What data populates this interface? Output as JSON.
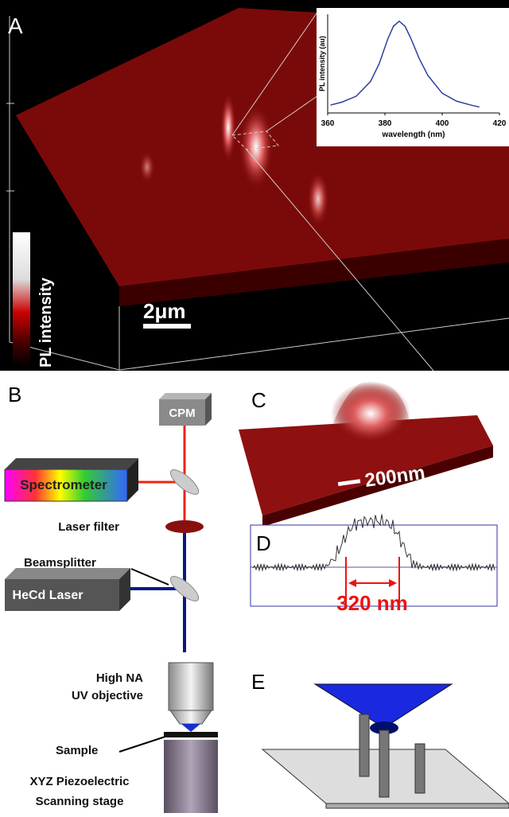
{
  "panel_a": {
    "label": "A",
    "colorbar_label": "PL intensity",
    "scale_bar": "2μm"
  },
  "chart_data": {
    "type": "line",
    "y_label": "PL intensity (au)",
    "x_label": "wavelength (nm)",
    "x": [
      361,
      365,
      370,
      375,
      378,
      381,
      383,
      385,
      387,
      389,
      392,
      395,
      400,
      405,
      410,
      413
    ],
    "series": [
      {
        "color": "#2a3fa0",
        "values": [
          0.08,
          0.11,
          0.17,
          0.32,
          0.5,
          0.75,
          0.88,
          0.93,
          0.88,
          0.76,
          0.55,
          0.38,
          0.2,
          0.12,
          0.08,
          0.06
        ]
      }
    ],
    "xlim": [
      360,
      420
    ],
    "xticks": [
      360,
      380,
      400,
      420
    ],
    "ylim": [
      0,
      1
    ]
  },
  "panel_b": {
    "label": "B",
    "cpm": "CPM",
    "spectrometer": "Spectrometer",
    "laser_filter": "Laser filter",
    "beamsplitter": "Beamsplitter",
    "laser": "HeCd Laser",
    "objective_1": "High NA",
    "objective_2": "UV objective",
    "sample": "Sample",
    "stage_1": "XYZ Piezoelectric",
    "stage_2": "Scanning stage"
  },
  "panel_c": {
    "label": "C",
    "scale_bar": "200nm"
  },
  "panel_d": {
    "label": "D",
    "width": "320 nm"
  },
  "panel_e": {
    "label": "E"
  }
}
